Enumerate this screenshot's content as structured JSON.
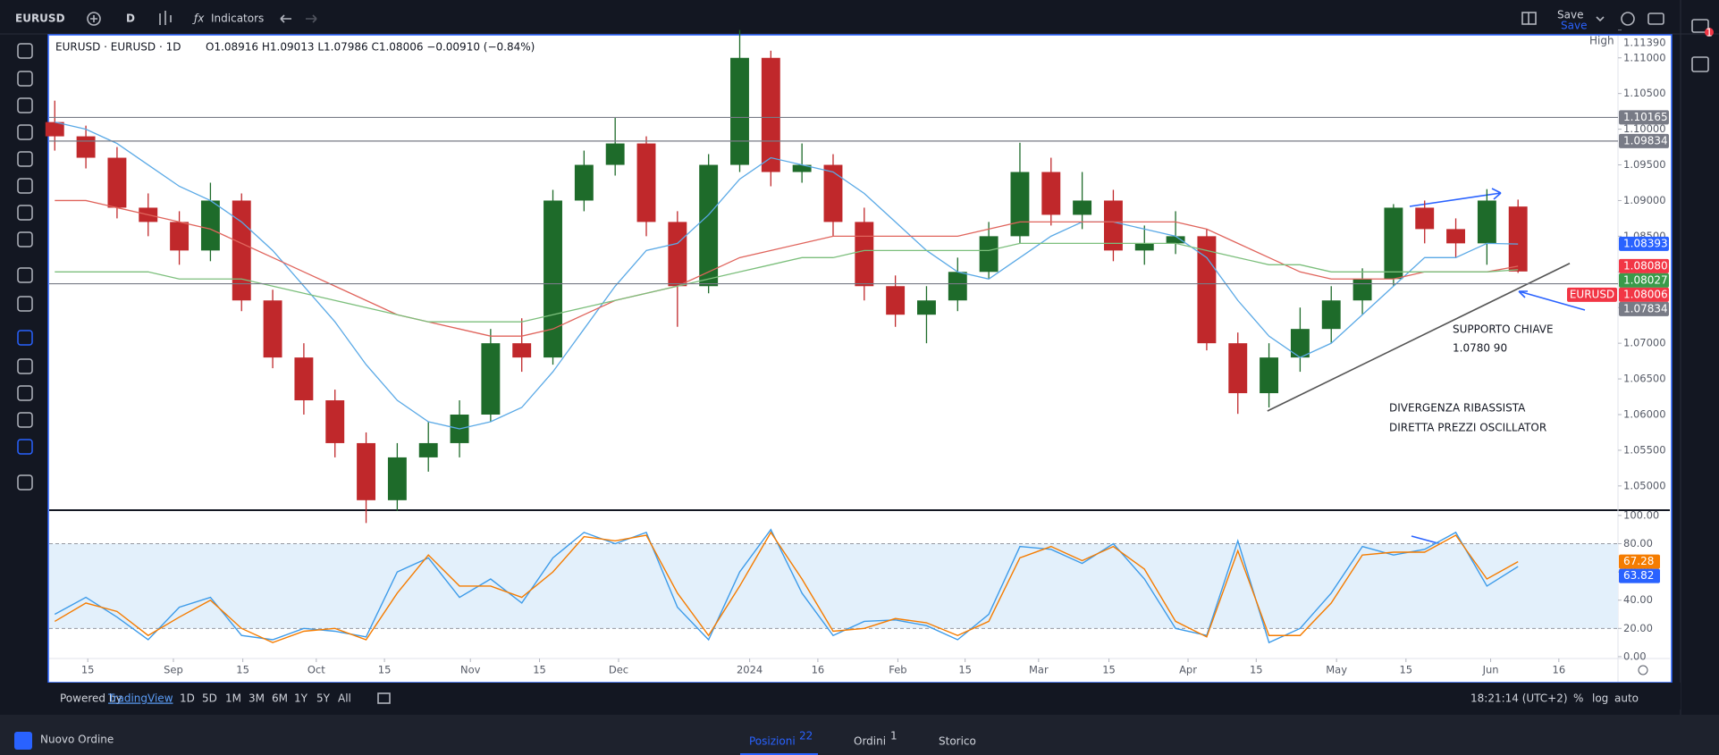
{
  "toolbar": {
    "symbol": "EURUSD",
    "interval": "D",
    "indicators": "Indicators",
    "save": "Save",
    "save_sub": "Save"
  },
  "sidebar": {
    "notification_count": 1
  },
  "chart_data": [
    {
      "type": "candlestick",
      "title": "EURUSD · EURUSD · 1D",
      "ohlc_text": "O1.08916 H1.09013 L1.07986 C1.08006 −0.00910 (−0.84%)",
      "x": [
        0,
        1,
        2,
        3,
        4,
        5,
        6,
        7,
        8,
        9,
        10,
        11,
        12,
        13,
        14,
        15,
        16,
        17,
        18,
        19,
        20,
        21,
        22,
        23,
        24,
        25,
        26,
        27,
        28,
        29,
        30,
        31,
        32,
        33,
        34,
        35,
        36,
        37,
        38,
        39,
        40,
        41,
        42,
        43,
        44,
        45,
        46,
        47
      ],
      "open": [
        1.101,
        1.099,
        1.096,
        1.089,
        1.087,
        1.083,
        1.09,
        1.076,
        1.068,
        1.062,
        1.056,
        1.048,
        1.054,
        1.056,
        1.06,
        1.07,
        1.068,
        1.09,
        1.095,
        1.098,
        1.087,
        1.078,
        1.095,
        1.11,
        1.094,
        1.095,
        1.087,
        1.078,
        1.074,
        1.076,
        1.08,
        1.085,
        1.094,
        1.088,
        1.09,
        1.083,
        1.084,
        1.085,
        1.07,
        1.063,
        1.068,
        1.072,
        1.076,
        1.079,
        1.089,
        1.086,
        1.084,
        1.08916
      ],
      "high": [
        1.104,
        1.1005,
        1.0975,
        1.091,
        1.0885,
        1.0925,
        1.091,
        1.0775,
        1.07,
        1.0635,
        1.0575,
        1.056,
        1.059,
        1.062,
        1.072,
        1.0735,
        1.0915,
        1.097,
        1.1017,
        1.099,
        1.0885,
        1.0965,
        1.1139,
        1.111,
        1.098,
        1.0965,
        1.089,
        1.0795,
        1.078,
        1.082,
        1.087,
        1.0981,
        1.096,
        1.094,
        1.0915,
        1.0865,
        1.0885,
        1.086,
        1.0715,
        1.07,
        1.075,
        1.078,
        1.0805,
        1.0895,
        1.09,
        1.0875,
        1.0916,
        1.09013
      ],
      "low": [
        1.097,
        1.0945,
        1.0875,
        1.085,
        1.081,
        1.0815,
        1.0745,
        1.0665,
        1.06,
        1.054,
        1.0448,
        1.0465,
        1.052,
        1.054,
        1.059,
        1.066,
        1.067,
        1.0885,
        1.0935,
        1.085,
        1.0723,
        1.077,
        1.094,
        1.092,
        1.0925,
        1.085,
        1.076,
        1.0723,
        1.07,
        1.0745,
        1.079,
        1.084,
        1.0865,
        1.086,
        1.0815,
        1.081,
        1.0825,
        1.069,
        1.0601,
        1.061,
        1.066,
        1.07,
        1.074,
        1.078,
        1.084,
        1.082,
        1.081,
        1.07986
      ],
      "close": [
        1.099,
        1.096,
        1.089,
        1.087,
        1.083,
        1.09,
        1.076,
        1.068,
        1.062,
        1.056,
        1.048,
        1.054,
        1.056,
        1.06,
        1.07,
        1.068,
        1.09,
        1.095,
        1.098,
        1.087,
        1.078,
        1.095,
        1.11,
        1.094,
        1.095,
        1.087,
        1.078,
        1.074,
        1.076,
        1.08,
        1.085,
        1.094,
        1.088,
        1.09,
        1.083,
        1.084,
        1.085,
        1.07,
        1.063,
        1.068,
        1.072,
        1.076,
        1.079,
        1.089,
        1.086,
        1.084,
        1.09,
        1.08006
      ],
      "up_color": "#1e6b2a",
      "down_color": "#c0282b",
      "lines": [
        {
          "color": "#5aa9e6",
          "values": [
            1.101,
            1.1,
            1.098,
            1.095,
            1.092,
            1.09,
            1.087,
            1.083,
            1.078,
            1.073,
            1.067,
            1.062,
            1.059,
            1.058,
            1.059,
            1.061,
            1.066,
            1.072,
            1.078,
            1.083,
            1.084,
            1.088,
            1.093,
            1.096,
            1.095,
            1.094,
            1.091,
            1.087,
            1.083,
            1.08,
            1.079,
            1.082,
            1.085,
            1.087,
            1.087,
            1.086,
            1.085,
            1.082,
            1.076,
            1.071,
            1.068,
            1.07,
            1.074,
            1.078,
            1.082,
            1.082,
            1.084,
            1.0839
          ]
        },
        {
          "color": "#e0645c",
          "values": [
            1.09,
            1.09,
            1.089,
            1.088,
            1.087,
            1.086,
            1.084,
            1.082,
            1.08,
            1.078,
            1.076,
            1.074,
            1.073,
            1.072,
            1.071,
            1.071,
            1.072,
            1.074,
            1.076,
            1.077,
            1.078,
            1.08,
            1.082,
            1.083,
            1.084,
            1.085,
            1.085,
            1.085,
            1.085,
            1.085,
            1.086,
            1.087,
            1.087,
            1.087,
            1.087,
            1.087,
            1.087,
            1.086,
            1.084,
            1.082,
            1.08,
            1.079,
            1.079,
            1.079,
            1.08,
            1.08,
            1.08,
            1.0808
          ]
        },
        {
          "color": "#7cbf7c",
          "values": [
            1.08,
            1.08,
            1.08,
            1.08,
            1.079,
            1.079,
            1.079,
            1.078,
            1.077,
            1.076,
            1.075,
            1.074,
            1.073,
            1.073,
            1.073,
            1.073,
            1.074,
            1.075,
            1.076,
            1.077,
            1.078,
            1.079,
            1.08,
            1.081,
            1.082,
            1.082,
            1.083,
            1.083,
            1.083,
            1.083,
            1.083,
            1.084,
            1.084,
            1.084,
            1.084,
            1.084,
            1.084,
            1.083,
            1.082,
            1.081,
            1.081,
            1.08,
            1.08,
            1.08,
            1.08,
            1.08,
            1.08,
            1.0803
          ]
        }
      ],
      "xlim": [
        -0.18,
        50.21
      ],
      "ylim": [
        1.0466,
        1.1131
      ],
      "yticks": [
        {
          "value": 1.05,
          "label": "1.05000"
        },
        {
          "value": 1.055,
          "label": "1.05500"
        },
        {
          "value": 1.06,
          "label": "1.06000"
        },
        {
          "value": 1.065,
          "label": "1.06500"
        },
        {
          "value": 1.07,
          "label": "1.07000"
        },
        {
          "value": 1.075,
          "label": "1.07500"
        },
        {
          "value": 1.08,
          "label": "1.08000"
        },
        {
          "value": 1.085,
          "label": "1.08500"
        },
        {
          "value": 1.09,
          "label": "1.09000"
        },
        {
          "value": 1.095,
          "label": "1.09500"
        },
        {
          "value": 1.1,
          "label": "1.10000"
        },
        {
          "value": 1.105,
          "label": "1.10500"
        },
        {
          "value": 1.11,
          "label": "1.11000"
        }
      ],
      "grid": false,
      "high_marker": {
        "name": "High",
        "value": 1.1139,
        "label": "1.11390"
      },
      "tags": [
        {
          "value": 1.10165,
          "label": "1.10165",
          "color": "#787b86",
          "line": true
        },
        {
          "value": 1.09834,
          "label": "1.09834",
          "color": "#787b86",
          "line": true
        },
        {
          "value": 1.08393,
          "label": "1.08393",
          "color": "#2962ff",
          "line": false
        },
        {
          "value": 1.0808,
          "label": "1.08080",
          "color": "#f23645",
          "line": false
        },
        {
          "value": 1.08027,
          "label": "1.08027",
          "color": "#3a9b4a",
          "line": false
        },
        {
          "name": "EURUSD",
          "value": 1.08006,
          "label": "1.08006",
          "color": "#f23645",
          "line": false
        },
        {
          "value": 1.07834,
          "label": "1.07834",
          "color": "#787b86",
          "line": true
        }
      ],
      "trend_line": {
        "x": [
          38.95,
          48.66
        ],
        "y": [
          1.0605,
          1.0812
        ]
      },
      "annotations": [
        "SUPPORTO CHIAVE",
        "1.0780 90",
        "DIVERGENZA RIBASSISTA",
        "DIRETTA PREZZI OSCILLATOR"
      ]
    },
    {
      "type": "line",
      "x": [
        0,
        1,
        2,
        3,
        4,
        5,
        6,
        7,
        8,
        9,
        10,
        11,
        12,
        13,
        14,
        15,
        16,
        17,
        18,
        19,
        20,
        21,
        22,
        23,
        24,
        25,
        26,
        27,
        28,
        29,
        30,
        31,
        32,
        33,
        34,
        35,
        36,
        37,
        38,
        39,
        40,
        41,
        42,
        43,
        44,
        45,
        46,
        47
      ],
      "series": [
        {
          "color": "#3d9be9",
          "values": [
            30,
            42,
            28,
            12,
            35,
            42,
            15,
            12,
            20,
            18,
            14,
            60,
            70,
            42,
            55,
            38,
            70,
            88,
            80,
            88,
            35,
            12,
            60,
            90,
            45,
            15,
            25,
            26,
            22,
            12,
            30,
            78,
            76,
            66,
            80,
            55,
            20,
            15,
            82,
            10,
            20,
            45,
            78,
            72,
            76,
            88,
            50,
            63.82
          ]
        },
        {
          "color": "#f57c00",
          "values": [
            25,
            38,
            32,
            15,
            28,
            40,
            20,
            10,
            18,
            20,
            12,
            45,
            72,
            50,
            50,
            42,
            60,
            85,
            82,
            86,
            45,
            15,
            50,
            88,
            55,
            18,
            20,
            27,
            24,
            15,
            25,
            70,
            78,
            68,
            78,
            62,
            25,
            14,
            75,
            15,
            15,
            38,
            72,
            74,
            74,
            86,
            55,
            67.28
          ]
        }
      ],
      "band": [
        20,
        80
      ],
      "xlim": [
        -0.18,
        50.21
      ],
      "ylim": [
        -1.3,
        103.1
      ],
      "yticks": [
        {
          "value": 0,
          "label": "0.00"
        },
        {
          "value": 20,
          "label": "20.00"
        },
        {
          "value": 40,
          "label": "40.00"
        },
        {
          "value": 60,
          "label": "60.00"
        },
        {
          "value": 80,
          "label": "80.00"
        },
        {
          "value": 100,
          "label": "100.00"
        }
      ],
      "tags": [
        {
          "value": 67.28,
          "label": "67.28",
          "color": "#f57c00"
        },
        {
          "value": 63.82,
          "label": "63.82",
          "color": "#2962ff"
        }
      ],
      "xticks": [
        {
          "value": 1.06,
          "label": "15"
        },
        {
          "value": 3.81,
          "label": "Sep"
        },
        {
          "value": 6.04,
          "label": "15"
        },
        {
          "value": 8.4,
          "label": "Oct"
        },
        {
          "value": 10.59,
          "label": "15"
        },
        {
          "value": 13.35,
          "label": "Nov"
        },
        {
          "value": 15.57,
          "label": "15"
        },
        {
          "value": 18.11,
          "label": "Dec"
        },
        {
          "value": 22.32,
          "label": "2024"
        },
        {
          "value": 24.51,
          "label": "16"
        },
        {
          "value": 27.08,
          "label": "Feb"
        },
        {
          "value": 29.24,
          "label": "15"
        },
        {
          "value": 31.6,
          "label": "Mar"
        },
        {
          "value": 33.86,
          "label": "15"
        },
        {
          "value": 36.4,
          "label": "Apr"
        },
        {
          "value": 38.59,
          "label": "15"
        },
        {
          "value": 41.17,
          "label": "May"
        },
        {
          "value": 43.4,
          "label": "15"
        },
        {
          "value": 46.12,
          "label": "Jun"
        },
        {
          "value": 48.31,
          "label": "16"
        }
      ]
    }
  ],
  "bottom_bar": {
    "powered_by": "Powered by",
    "brand": "TradingView",
    "ranges": [
      "1D",
      "5D",
      "1M",
      "3M",
      "6M",
      "1Y",
      "5Y",
      "All"
    ],
    "time": "18:21:14 (UTC+2)",
    "options": [
      "%",
      "log",
      "auto"
    ]
  },
  "panel": {
    "new_order": "Nuovo Ordine",
    "tabs": [
      {
        "label": "Posizioni",
        "count": 22
      },
      {
        "label": "Ordini",
        "count": 1
      },
      {
        "label": "Storico"
      }
    ]
  }
}
